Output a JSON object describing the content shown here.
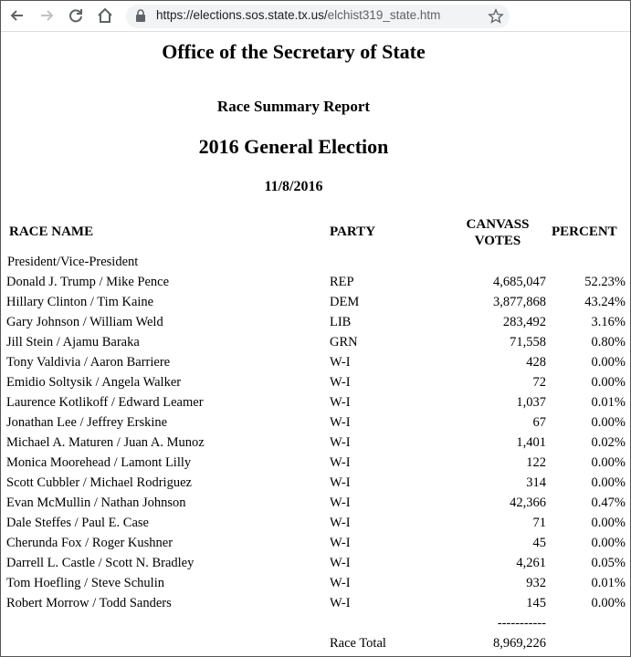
{
  "browser": {
    "url_host": "https://elections.sos.state.tx.us/",
    "url_path": "elchist319_state.htm"
  },
  "page": {
    "office": "Office of the Secretary of State",
    "report": "Race Summary Report",
    "election": "2016 General Election",
    "date": "11/8/2016"
  },
  "table": {
    "headers": {
      "race_name": "RACE NAME",
      "party": "PARTY",
      "votes_line1": "CANVASS",
      "votes_line2": "VOTES",
      "percent": "PERCENT"
    },
    "race": "President/Vice-President",
    "rows": [
      {
        "name": "Donald J. Trump / Mike Pence",
        "party": "REP",
        "votes": "4,685,047",
        "percent": "52.23%"
      },
      {
        "name": "Hillary Clinton / Tim Kaine",
        "party": "DEM",
        "votes": "3,877,868",
        "percent": "43.24%"
      },
      {
        "name": "Gary Johnson / William Weld",
        "party": "LIB",
        "votes": "283,492",
        "percent": "3.16%"
      },
      {
        "name": "Jill Stein / Ajamu Baraka",
        "party": "GRN",
        "votes": "71,558",
        "percent": "0.80%"
      },
      {
        "name": "Tony Valdivia / Aaron Barriere",
        "party": "W-I",
        "votes": "428",
        "percent": "0.00%"
      },
      {
        "name": "Emidio Soltysik / Angela Walker",
        "party": "W-I",
        "votes": "72",
        "percent": "0.00%"
      },
      {
        "name": "Laurence Kotlikoff / Edward Leamer",
        "party": "W-I",
        "votes": "1,037",
        "percent": "0.01%"
      },
      {
        "name": "Jonathan Lee / Jeffrey Erskine",
        "party": "W-I",
        "votes": "67",
        "percent": "0.00%"
      },
      {
        "name": "Michael A. Maturen / Juan A. Munoz",
        "party": "W-I",
        "votes": "1,401",
        "percent": "0.02%"
      },
      {
        "name": "Monica Moorehead / Lamont Lilly",
        "party": "W-I",
        "votes": "122",
        "percent": "0.00%"
      },
      {
        "name": "Scott Cubbler / Michael Rodriguez",
        "party": "W-I",
        "votes": "314",
        "percent": "0.00%"
      },
      {
        "name": "Evan McMullin / Nathan Johnson",
        "party": "W-I",
        "votes": "42,366",
        "percent": "0.47%"
      },
      {
        "name": "Dale Steffes / Paul E. Case",
        "party": "W-I",
        "votes": "71",
        "percent": "0.00%"
      },
      {
        "name": "Cherunda Fox / Roger Kushner",
        "party": "W-I",
        "votes": "45",
        "percent": "0.00%"
      },
      {
        "name": "Darrell L. Castle / Scott N. Bradley",
        "party": "W-I",
        "votes": "4,261",
        "percent": "0.05%"
      },
      {
        "name": "Tom Hoefling / Steve Schulin",
        "party": "W-I",
        "votes": "932",
        "percent": "0.01%"
      },
      {
        "name": "Robert Morrow / Todd Sanders",
        "party": "W-I",
        "votes": "145",
        "percent": "0.00%"
      }
    ],
    "separator": "-----------",
    "total_label": "Race Total",
    "total_votes": "8,969,226"
  }
}
